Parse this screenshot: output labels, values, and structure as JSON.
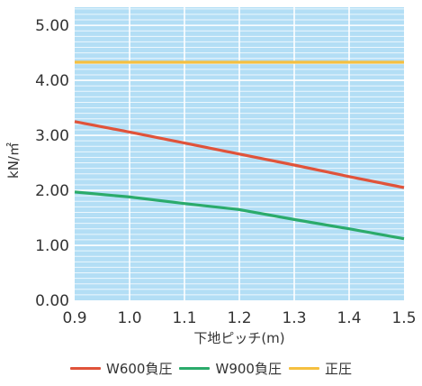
{
  "chart_data": {
    "type": "line",
    "title": "",
    "xlabel": "下地ピッチ(m)",
    "ylabel": "kN/㎡",
    "x": [
      0.9,
      1.0,
      1.1,
      1.2,
      1.3,
      1.4,
      1.5
    ],
    "x_tick_labels": [
      "0.9",
      "1.0",
      "1.1",
      "1.2",
      "1.3",
      "1.4",
      "1.5"
    ],
    "y_tick_labels": [
      "0.00",
      "1.00",
      "2.00",
      "3.00",
      "4.00",
      "5.00"
    ],
    "y_ticks": [
      0,
      1,
      2,
      3,
      4,
      5
    ],
    "xlim": [
      0.9,
      1.5
    ],
    "ylim": [
      0.0,
      5.33
    ],
    "grid": true,
    "legend_position": "bottom",
    "background_color": "#b3def5",
    "series": [
      {
        "name": "W600負圧",
        "color": "#e0533a",
        "values": [
          3.25,
          3.06,
          2.86,
          2.66,
          2.46,
          2.25,
          2.05
        ]
      },
      {
        "name": "W900負圧",
        "color": "#2bab6b",
        "values": [
          1.97,
          1.88,
          1.76,
          1.65,
          1.47,
          1.3,
          1.12
        ]
      },
      {
        "name": "正圧",
        "color": "#f5c040",
        "values": [
          4.33,
          4.33,
          4.33,
          4.33,
          4.33,
          4.33,
          4.33
        ]
      }
    ]
  }
}
